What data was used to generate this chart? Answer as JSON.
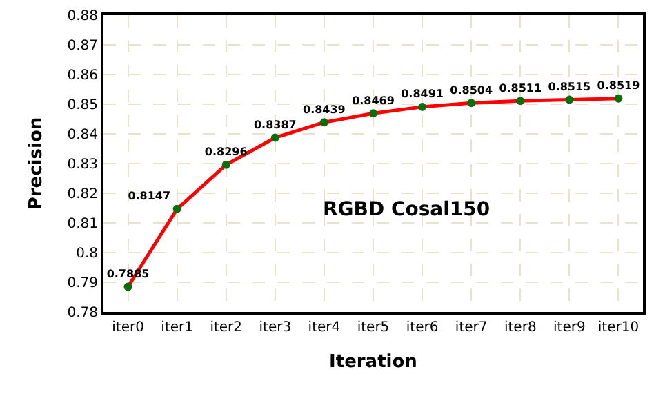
{
  "chart_data": {
    "type": "line",
    "xlabel": "Iteration",
    "ylabel": "Precision",
    "categories": [
      "iter0",
      "iter1",
      "iter2",
      "iter3",
      "iter4",
      "iter5",
      "iter6",
      "iter7",
      "iter8",
      "iter9",
      "iter10"
    ],
    "series": [
      {
        "color": "#ff0000",
        "values": [
          0.7885,
          0.8147,
          0.8296,
          0.8387,
          0.8439,
          0.8469,
          0.8491,
          0.8504,
          0.8511,
          0.8515,
          0.8519
        ]
      }
    ],
    "ylim": [
      0.78,
      0.88
    ],
    "yticks": [
      0.78,
      0.79,
      0.8,
      0.81,
      0.82,
      0.83,
      0.84,
      0.85,
      0.86,
      0.87,
      0.88
    ],
    "grid": true,
    "marker": "circle",
    "line_style": "solid",
    "data_labels": true,
    "legend": false,
    "annotations": [
      "RGBD Cosal150"
    ]
  }
}
